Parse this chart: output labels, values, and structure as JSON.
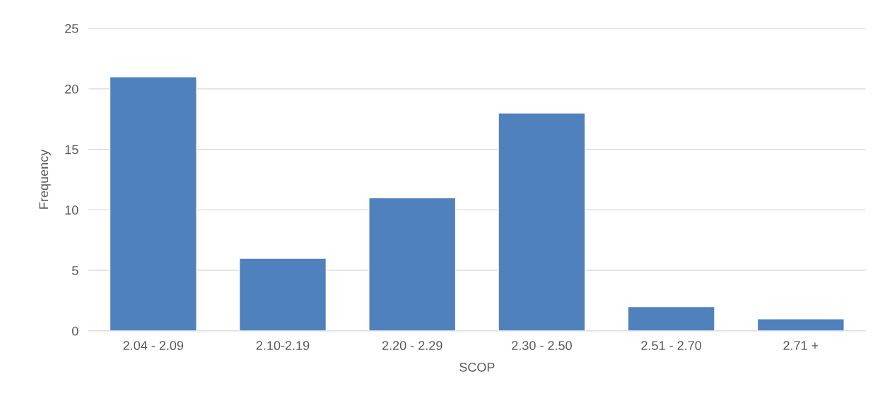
{
  "chart_data": {
    "type": "bar",
    "xlabel": "SCOP",
    "ylabel": "Frequency",
    "categories": [
      "2.04 - 2.09",
      "2.10-2.19",
      "2.20 - 2.29",
      "2.30 - 2.50",
      "2.51 - 2.70",
      "2.71 +"
    ],
    "values": [
      21,
      6,
      11,
      18,
      2,
      1
    ],
    "color": "#4f81bd",
    "ylim": [
      0,
      25
    ],
    "yticks": [
      0,
      5,
      10,
      15,
      20,
      25
    ],
    "grid": "y",
    "legend": false
  }
}
